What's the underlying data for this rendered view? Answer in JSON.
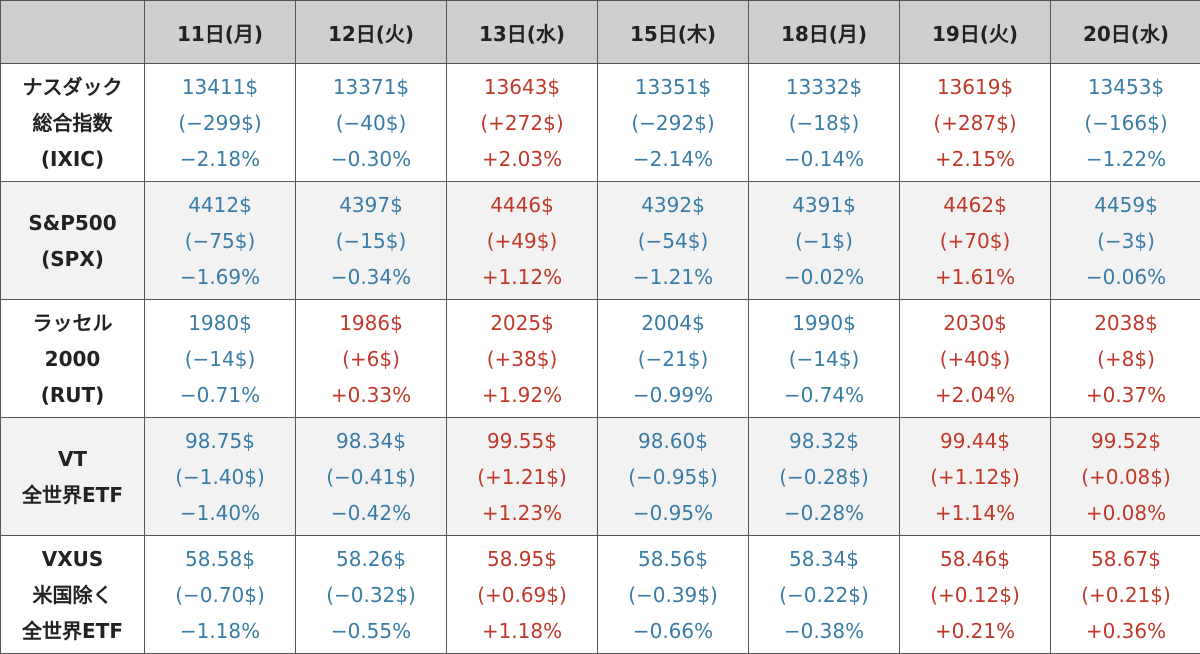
{
  "colors": {
    "down": "#3a7ca5",
    "up": "#c0392b",
    "header_bg": "#cfcfcf",
    "alt_row_bg": "#f2f2f2"
  },
  "header": {
    "corner": "",
    "days": [
      "11日(月)",
      "12日(火)",
      "13日(水)",
      "15日(木)",
      "18日(月)",
      "19日(火)",
      "20日(水)"
    ]
  },
  "rows": [
    {
      "label": [
        "ナスダック",
        "総合指数",
        "(IXIC)"
      ],
      "cells": [
        {
          "dir": "down",
          "price": "13411$",
          "change": "(−299$)",
          "pct": "−2.18%"
        },
        {
          "dir": "down",
          "price": "13371$",
          "change": "(−40$)",
          "pct": "−0.30%"
        },
        {
          "dir": "up",
          "price": "13643$",
          "change": "(+272$)",
          "pct": "+2.03%"
        },
        {
          "dir": "down",
          "price": "13351$",
          "change": "(−292$)",
          "pct": "−2.14%"
        },
        {
          "dir": "down",
          "price": "13332$",
          "change": "(−18$)",
          "pct": "−0.14%"
        },
        {
          "dir": "up",
          "price": "13619$",
          "change": "(+287$)",
          "pct": "+2.15%"
        },
        {
          "dir": "down",
          "price": "13453$",
          "change": "(−166$)",
          "pct": "−1.22%"
        }
      ]
    },
    {
      "label": [
        "S&P500",
        "(SPX)"
      ],
      "cells": [
        {
          "dir": "down",
          "price": "4412$",
          "change": "(−75$)",
          "pct": "−1.69%"
        },
        {
          "dir": "down",
          "price": "4397$",
          "change": "(−15$)",
          "pct": "−0.34%"
        },
        {
          "dir": "up",
          "price": "4446$",
          "change": "(+49$)",
          "pct": "+1.12%"
        },
        {
          "dir": "down",
          "price": "4392$",
          "change": "(−54$)",
          "pct": "−1.21%"
        },
        {
          "dir": "down",
          "price": "4391$",
          "change": "(−1$)",
          "pct": "−0.02%"
        },
        {
          "dir": "up",
          "price": "4462$",
          "change": "(+70$)",
          "pct": "+1.61%"
        },
        {
          "dir": "down",
          "price": "4459$",
          "change": "(−3$)",
          "pct": "−0.06%"
        }
      ]
    },
    {
      "label": [
        "ラッセル",
        "2000",
        "(RUT)"
      ],
      "cells": [
        {
          "dir": "down",
          "price": "1980$",
          "change": "(−14$)",
          "pct": "−0.71%"
        },
        {
          "dir": "up",
          "price": "1986$",
          "change": "(+6$)",
          "pct": "+0.33%"
        },
        {
          "dir": "up",
          "price": "2025$",
          "change": "(+38$)",
          "pct": "+1.92%"
        },
        {
          "dir": "down",
          "price": "2004$",
          "change": "(−21$)",
          "pct": "−0.99%"
        },
        {
          "dir": "down",
          "price": "1990$",
          "change": "(−14$)",
          "pct": "−0.74%"
        },
        {
          "dir": "up",
          "price": "2030$",
          "change": "(+40$)",
          "pct": "+2.04%"
        },
        {
          "dir": "up",
          "price": "2038$",
          "change": "(+8$)",
          "pct": "+0.37%"
        }
      ]
    },
    {
      "label": [
        "VT",
        "全世界ETF"
      ],
      "cells": [
        {
          "dir": "down",
          "price": "98.75$",
          "change": "(−1.40$)",
          "pct": "−1.40%"
        },
        {
          "dir": "down",
          "price": "98.34$",
          "change": "(−0.41$)",
          "pct": "−0.42%"
        },
        {
          "dir": "up",
          "price": "99.55$",
          "change": "(+1.21$)",
          "pct": "+1.23%"
        },
        {
          "dir": "down",
          "price": "98.60$",
          "change": "(−0.95$)",
          "pct": "−0.95%"
        },
        {
          "dir": "down",
          "price": "98.32$",
          "change": "(−0.28$)",
          "pct": "−0.28%"
        },
        {
          "dir": "up",
          "price": "99.44$",
          "change": "(+1.12$)",
          "pct": "+1.14%"
        },
        {
          "dir": "up",
          "price": "99.52$",
          "change": "(+0.08$)",
          "pct": "+0.08%"
        }
      ]
    },
    {
      "label": [
        "VXUS",
        "米国除く",
        "全世界ETF"
      ],
      "cells": [
        {
          "dir": "down",
          "price": "58.58$",
          "change": "(−0.70$)",
          "pct": "−1.18%"
        },
        {
          "dir": "down",
          "price": "58.26$",
          "change": "(−0.32$)",
          "pct": "−0.55%"
        },
        {
          "dir": "up",
          "price": "58.95$",
          "change": "(+0.69$)",
          "pct": "+1.18%"
        },
        {
          "dir": "down",
          "price": "58.56$",
          "change": "(−0.39$)",
          "pct": "−0.66%"
        },
        {
          "dir": "down",
          "price": "58.34$",
          "change": "(−0.22$)",
          "pct": "−0.38%"
        },
        {
          "dir": "up",
          "price": "58.46$",
          "change": "(+0.12$)",
          "pct": "+0.21%"
        },
        {
          "dir": "up",
          "price": "58.67$",
          "change": "(+0.21$)",
          "pct": "+0.36%"
        }
      ]
    }
  ]
}
